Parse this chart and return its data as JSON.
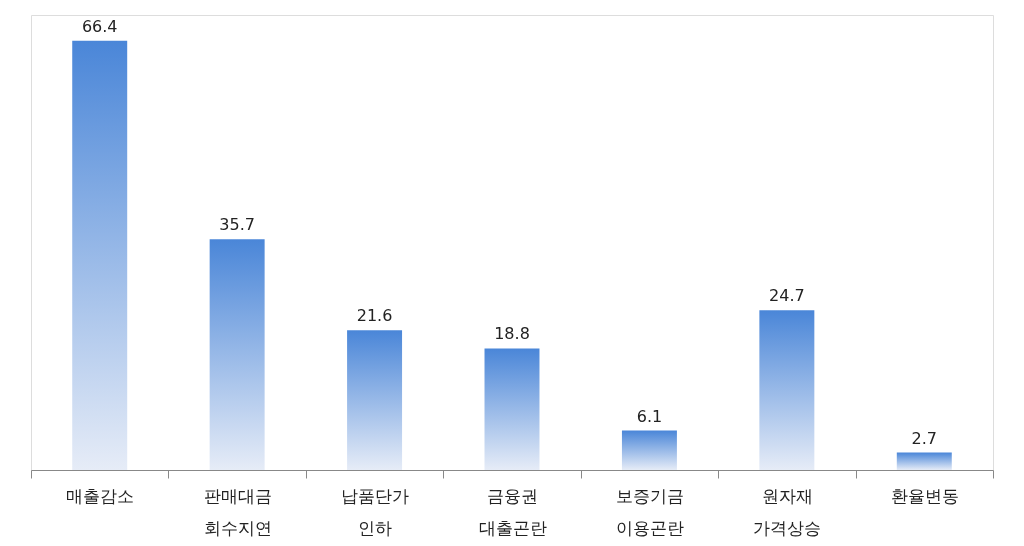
{
  "chart_data": {
    "type": "bar",
    "categories": [
      "매출감소",
      "판매대금 회수지연",
      "납품단가 인하",
      "금융권 대출곤란",
      "보증기금 이용곤란",
      "원자재 가격상승",
      "환율변동"
    ],
    "values": [
      66.4,
      35.7,
      21.6,
      18.8,
      6.1,
      24.7,
      2.7
    ],
    "color": "#4a86d8",
    "data_labels": true,
    "grid": false
  }
}
